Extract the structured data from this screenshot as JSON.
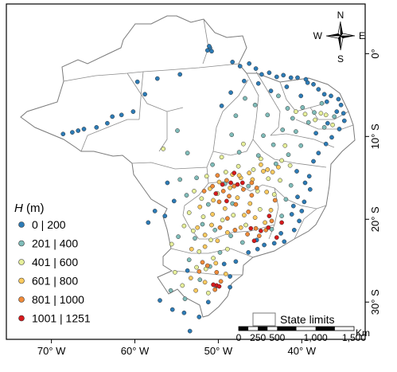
{
  "axes": {
    "x_ticks": [
      {
        "lon": -70,
        "label": "70° W"
      },
      {
        "lon": -60,
        "label": "60° W"
      },
      {
        "lon": -50,
        "label": "50° W"
      },
      {
        "lon": -40,
        "label": "40° W"
      }
    ],
    "y_ticks": [
      {
        "lat": 0,
        "label": "0°"
      },
      {
        "lat": -10,
        "label": "10° S"
      },
      {
        "lat": -20,
        "label": "20° S"
      },
      {
        "lat": -30,
        "label": "30° S"
      }
    ],
    "lon_range": [
      -75.4,
      -32.4
    ],
    "lat_range": [
      -34.5,
      6.0
    ]
  },
  "compass": {
    "n": "N",
    "s": "S",
    "e": "E",
    "w": "W"
  },
  "legend": {
    "title_var": "H",
    "title_unit": " (m)",
    "classes": [
      {
        "label": "0 |  200",
        "color": "#2c7bb6"
      },
      {
        "label": "201 |  400",
        "color": "#7fbcb9"
      },
      {
        "label": "401 |  600",
        "color": "#e6ef9a"
      },
      {
        "label": "601 |  800",
        "color": "#fdca5e"
      },
      {
        "label": "801 | 1000",
        "color": "#f08a38"
      },
      {
        "label": "1001 | 1251",
        "color": "#d7191c"
      }
    ]
  },
  "state_limits": {
    "label": "State limits"
  },
  "scale_bar": {
    "unit": "Km",
    "labels": [
      "0",
      "250",
      "500",
      "1,000",
      "1,500"
    ],
    "km_values": [
      0,
      250,
      500,
      1000,
      1500
    ]
  },
  "stations": [
    {
      "lon": -51.3,
      "lat": 0.4,
      "c": 0
    },
    {
      "lon": -51.0,
      "lat": 0.7,
      "c": 0
    },
    {
      "lon": -50.8,
      "lat": 0.3,
      "c": 0
    },
    {
      "lon": -51.1,
      "lat": 0.9,
      "c": 0
    },
    {
      "lon": -57.3,
      "lat": -3.0,
      "c": 0
    },
    {
      "lon": -59.7,
      "lat": -3.4,
      "c": 0
    },
    {
      "lon": -54.6,
      "lat": -2.5,
      "c": 0
    },
    {
      "lon": -60.2,
      "lat": -7.0,
      "c": 0
    },
    {
      "lon": -61.6,
      "lat": -7.4,
      "c": 0
    },
    {
      "lon": -62.7,
      "lat": -7.6,
      "c": 0
    },
    {
      "lon": -63.3,
      "lat": -8.4,
      "c": 0
    },
    {
      "lon": -64.6,
      "lat": -8.9,
      "c": 0
    },
    {
      "lon": -66.8,
      "lat": -9.3,
      "c": 0
    },
    {
      "lon": -67.5,
      "lat": -9.5,
      "c": 0
    },
    {
      "lon": -68.6,
      "lat": -9.7,
      "c": 0
    },
    {
      "lon": -66.1,
      "lat": -9.1,
      "c": 0
    },
    {
      "lon": -58.8,
      "lat": -4.9,
      "c": 0
    },
    {
      "lon": -48.3,
      "lat": -1.0,
      "c": 0
    },
    {
      "lon": -47.4,
      "lat": -1.5,
      "c": 0
    },
    {
      "lon": -46.3,
      "lat": -1.2,
      "c": 0
    },
    {
      "lon": -45.5,
      "lat": -1.8,
      "c": 0
    },
    {
      "lon": -44.8,
      "lat": -2.5,
      "c": 0
    },
    {
      "lon": -43.9,
      "lat": -2.3,
      "c": 0
    },
    {
      "lon": -43.0,
      "lat": -2.8,
      "c": 0
    },
    {
      "lon": -42.2,
      "lat": -2.6,
      "c": 0
    },
    {
      "lon": -41.3,
      "lat": -2.9,
      "c": 0
    },
    {
      "lon": -40.5,
      "lat": -2.9,
      "c": 0
    },
    {
      "lon": -39.5,
      "lat": -3.1,
      "c": 0
    },
    {
      "lon": -38.6,
      "lat": -3.7,
      "c": 0
    },
    {
      "lon": -38.0,
      "lat": -4.3,
      "c": 0
    },
    {
      "lon": -37.3,
      "lat": -4.9,
      "c": 0
    },
    {
      "lon": -36.5,
      "lat": -5.1,
      "c": 0
    },
    {
      "lon": -35.6,
      "lat": -5.5,
      "c": 0
    },
    {
      "lon": -35.3,
      "lat": -6.2,
      "c": 0
    },
    {
      "lon": -35.0,
      "lat": -7.2,
      "c": 0
    },
    {
      "lon": -34.9,
      "lat": -8.1,
      "c": 0
    },
    {
      "lon": -35.5,
      "lat": -9.1,
      "c": 0
    },
    {
      "lon": -36.4,
      "lat": -10.1,
      "c": 0
    },
    {
      "lon": -37.1,
      "lat": -10.9,
      "c": 0
    },
    {
      "lon": -38.0,
      "lat": -12.0,
      "c": 0
    },
    {
      "lon": -38.6,
      "lat": -13.0,
      "c": 0
    },
    {
      "lon": -39.1,
      "lat": -14.8,
      "c": 0
    },
    {
      "lon": -39.0,
      "lat": -16.4,
      "c": 0
    },
    {
      "lon": -39.7,
      "lat": -17.9,
      "c": 0
    },
    {
      "lon": -40.0,
      "lat": -19.0,
      "c": 0
    },
    {
      "lon": -40.3,
      "lat": -20.2,
      "c": 0
    },
    {
      "lon": -40.9,
      "lat": -21.3,
      "c": 0
    },
    {
      "lon": -42.1,
      "lat": -22.7,
      "c": 0
    },
    {
      "lon": -43.3,
      "lat": -22.9,
      "c": 0
    },
    {
      "lon": -44.5,
      "lat": -23.1,
      "c": 0
    },
    {
      "lon": -45.3,
      "lat": -23.6,
      "c": 0
    },
    {
      "lon": -46.4,
      "lat": -24.0,
      "c": 0
    },
    {
      "lon": -47.9,
      "lat": -25.1,
      "c": 0
    },
    {
      "lon": -48.6,
      "lat": -26.9,
      "c": 0
    },
    {
      "lon": -48.6,
      "lat": -28.2,
      "c": 0
    },
    {
      "lon": -51.2,
      "lat": -30.0,
      "c": 0
    },
    {
      "lon": -52.3,
      "lat": -31.8,
      "c": 0
    },
    {
      "lon": -53.4,
      "lat": -33.5,
      "c": 0
    },
    {
      "lon": -55.5,
      "lat": -30.9,
      "c": 0
    },
    {
      "lon": -57.0,
      "lat": -29.8,
      "c": 0
    },
    {
      "lon": -54.1,
      "lat": -31.3,
      "c": 0
    },
    {
      "lon": -57.6,
      "lat": -19.0,
      "c": 0
    },
    {
      "lon": -56.4,
      "lat": -19.6,
      "c": 0
    },
    {
      "lon": -58.4,
      "lat": -20.4,
      "c": 0
    },
    {
      "lon": -55.3,
      "lat": -17.8,
      "c": 0
    },
    {
      "lon": -56.1,
      "lat": -15.6,
      "c": 0
    },
    {
      "lon": -39.3,
      "lat": -3.5,
      "c": 0
    },
    {
      "lon": -37.0,
      "lat": -5.8,
      "c": 0
    },
    {
      "lon": -35.8,
      "lat": -7.0,
      "c": 0
    },
    {
      "lon": -36.9,
      "lat": -8.4,
      "c": 0
    },
    {
      "lon": -38.3,
      "lat": -9.6,
      "c": 0
    },
    {
      "lon": -40.1,
      "lat": -5.1,
      "c": 0
    },
    {
      "lon": -41.8,
      "lat": -4.0,
      "c": 0
    },
    {
      "lon": -43.7,
      "lat": -4.5,
      "c": 0
    },
    {
      "lon": -45.2,
      "lat": -3.6,
      "c": 0
    },
    {
      "lon": -46.9,
      "lat": -3.3,
      "c": 0
    },
    {
      "lon": -48.5,
      "lat": -4.7,
      "c": 0
    },
    {
      "lon": -49.6,
      "lat": -6.3,
      "c": 0
    },
    {
      "lon": -40.6,
      "lat": -14.2,
      "c": 0
    },
    {
      "lon": -39.6,
      "lat": -15.6,
      "c": 0
    },
    {
      "lon": -40.5,
      "lat": -17.3,
      "c": 0
    },
    {
      "lon": -41.2,
      "lat": -19.4,
      "c": 0
    },
    {
      "lon": -41.0,
      "lat": -18.4,
      "c": 0
    },
    {
      "lon": -42.5,
      "lat": -21.7,
      "c": 0
    },
    {
      "lon": -45.4,
      "lat": -22.5,
      "c": 0
    },
    {
      "lon": -49.3,
      "lat": -25.4,
      "c": 0
    },
    {
      "lon": -53.7,
      "lat": -26.2,
      "c": 0
    },
    {
      "lon": -42.8,
      "lat": -5.1,
      "c": 1
    },
    {
      "lon": -41.7,
      "lat": -6.6,
      "c": 1
    },
    {
      "lon": -39.9,
      "lat": -6.5,
      "c": 1
    },
    {
      "lon": -38.5,
      "lat": -7.1,
      "c": 1
    },
    {
      "lon": -37.6,
      "lat": -6.0,
      "c": 1
    },
    {
      "lon": -36.1,
      "lat": -7.6,
      "c": 1
    },
    {
      "lon": -37.3,
      "lat": -8.9,
      "c": 1
    },
    {
      "lon": -39.2,
      "lat": -8.3,
      "c": 1
    },
    {
      "lon": -40.7,
      "lat": -9.4,
      "c": 1
    },
    {
      "lon": -42.3,
      "lat": -9.2,
      "c": 1
    },
    {
      "lon": -44.1,
      "lat": -7.4,
      "c": 1
    },
    {
      "lon": -45.6,
      "lat": -6.2,
      "c": 1
    },
    {
      "lon": -46.8,
      "lat": -5.4,
      "c": 1
    },
    {
      "lon": -47.9,
      "lat": -7.5,
      "c": 1
    },
    {
      "lon": -48.4,
      "lat": -9.8,
      "c": 1
    },
    {
      "lon": -47.5,
      "lat": -11.9,
      "c": 1
    },
    {
      "lon": -45.2,
      "lat": -12.3,
      "c": 1
    },
    {
      "lon": -43.4,
      "lat": -11.0,
      "c": 1
    },
    {
      "lon": -41.6,
      "lat": -12.2,
      "c": 1
    },
    {
      "lon": -40.1,
      "lat": -11.1,
      "c": 1
    },
    {
      "lon": -41.3,
      "lat": -15.9,
      "c": 1
    },
    {
      "lon": -41.9,
      "lat": -17.6,
      "c": 1
    },
    {
      "lon": -42.4,
      "lat": -19.6,
      "c": 1
    },
    {
      "lon": -43.6,
      "lat": -21.2,
      "c": 1
    },
    {
      "lon": -47.1,
      "lat": -22.8,
      "c": 1
    },
    {
      "lon": -48.5,
      "lat": -22.0,
      "c": 1
    },
    {
      "lon": -50.4,
      "lat": -21.3,
      "c": 1
    },
    {
      "lon": -51.9,
      "lat": -20.6,
      "c": 1
    },
    {
      "lon": -52.8,
      "lat": -22.3,
      "c": 1
    },
    {
      "lon": -54.8,
      "lat": -22.1,
      "c": 1
    },
    {
      "lon": -53.5,
      "lat": -24.9,
      "c": 1
    },
    {
      "lon": -52.2,
      "lat": -27.3,
      "c": 1
    },
    {
      "lon": -50.3,
      "lat": -28.1,
      "c": 1
    },
    {
      "lon": -55.7,
      "lat": -28.6,
      "c": 1
    },
    {
      "lon": -54.0,
      "lat": -29.6,
      "c": 1
    },
    {
      "lon": -49.2,
      "lat": -15.7,
      "c": 1
    },
    {
      "lon": -50.7,
      "lat": -13.4,
      "c": 1
    },
    {
      "lon": -52.6,
      "lat": -15.0,
      "c": 1
    },
    {
      "lon": -53.8,
      "lat": -17.1,
      "c": 1
    },
    {
      "lon": -54.6,
      "lat": -15.2,
      "c": 1
    },
    {
      "lon": -41.1,
      "lat": -7.8,
      "c": 1
    },
    {
      "lon": -44.6,
      "lat": -9.9,
      "c": 1
    },
    {
      "lon": -43.1,
      "lat": -13.3,
      "c": 1
    },
    {
      "lon": -46.4,
      "lat": -16.0,
      "c": 1
    },
    {
      "lon": -48.3,
      "lat": -18.1,
      "c": 1
    },
    {
      "lon": -51.2,
      "lat": -18.2,
      "c": 1
    },
    {
      "lon": -49.8,
      "lat": -24.0,
      "c": 1
    },
    {
      "lon": -51.0,
      "lat": -25.7,
      "c": 1
    },
    {
      "lon": -54.9,
      "lat": -9.3,
      "c": 1
    },
    {
      "lon": -53.7,
      "lat": -12.0,
      "c": 1
    },
    {
      "lon": -40.7,
      "lat": -7.0,
      "c": 2
    },
    {
      "lon": -39.6,
      "lat": -7.3,
      "c": 2
    },
    {
      "lon": -38.4,
      "lat": -8.0,
      "c": 2
    },
    {
      "lon": -37.7,
      "lat": -7.2,
      "c": 2
    },
    {
      "lon": -36.3,
      "lat": -8.6,
      "c": 2
    },
    {
      "lon": -42.0,
      "lat": -11.1,
      "c": 2
    },
    {
      "lon": -41.4,
      "lat": -13.5,
      "c": 2
    },
    {
      "lon": -44.0,
      "lat": -15.1,
      "c": 2
    },
    {
      "lon": -45.8,
      "lat": -14.0,
      "c": 2
    },
    {
      "lon": -47.6,
      "lat": -13.6,
      "c": 2
    },
    {
      "lon": -49.6,
      "lat": -12.5,
      "c": 2
    },
    {
      "lon": -51.4,
      "lat": -14.8,
      "c": 2
    },
    {
      "lon": -52.9,
      "lat": -16.6,
      "c": 2
    },
    {
      "lon": -53.5,
      "lat": -19.2,
      "c": 2
    },
    {
      "lon": -54.1,
      "lat": -20.8,
      "c": 2
    },
    {
      "lon": -52.3,
      "lat": -23.9,
      "c": 2
    },
    {
      "lon": -50.6,
      "lat": -24.7,
      "c": 2
    },
    {
      "lon": -51.5,
      "lat": -26.0,
      "c": 2
    },
    {
      "lon": -52.6,
      "lat": -25.8,
      "c": 2
    },
    {
      "lon": -55.6,
      "lat": -23.0,
      "c": 2
    },
    {
      "lon": -49.5,
      "lat": -20.1,
      "c": 2
    },
    {
      "lon": -48.2,
      "lat": -19.5,
      "c": 2
    },
    {
      "lon": -46.7,
      "lat": -20.7,
      "c": 2
    },
    {
      "lon": -45.0,
      "lat": -18.8,
      "c": 2
    },
    {
      "lon": -43.3,
      "lat": -17.0,
      "c": 2
    },
    {
      "lon": -42.6,
      "lat": -15.3,
      "c": 2
    },
    {
      "lon": -44.9,
      "lat": -12.7,
      "c": 2
    },
    {
      "lon": -47.0,
      "lat": -10.9,
      "c": 2
    },
    {
      "lon": -50.1,
      "lat": -16.9,
      "c": 2
    },
    {
      "lon": -51.8,
      "lat": -19.7,
      "c": 2
    },
    {
      "lon": -53.0,
      "lat": -21.4,
      "c": 2
    },
    {
      "lon": -50.9,
      "lat": -22.5,
      "c": 2
    },
    {
      "lon": -48.9,
      "lat": -23.6,
      "c": 2
    },
    {
      "lon": -55.2,
      "lat": -26.4,
      "c": 2
    },
    {
      "lon": -54.3,
      "lat": -28.0,
      "c": 2
    },
    {
      "lon": -56.6,
      "lat": -11.5,
      "c": 2
    },
    {
      "lon": -37.1,
      "lat": -7.4,
      "c": 2
    },
    {
      "lon": -42.4,
      "lat": -12.9,
      "c": 2
    },
    {
      "lon": -45.3,
      "lat": -16.6,
      "c": 2
    },
    {
      "lon": -49.1,
      "lat": -14.3,
      "c": 2
    },
    {
      "lon": -52.0,
      "lat": -17.5,
      "c": 2
    },
    {
      "lon": -51.2,
      "lat": -28.9,
      "c": 2
    },
    {
      "lon": -44.6,
      "lat": -14.2,
      "c": 3
    },
    {
      "lon": -45.9,
      "lat": -15.2,
      "c": 3
    },
    {
      "lon": -47.3,
      "lat": -15.0,
      "c": 3
    },
    {
      "lon": -48.6,
      "lat": -16.2,
      "c": 3
    },
    {
      "lon": -49.9,
      "lat": -15.5,
      "c": 3
    },
    {
      "lon": -51.0,
      "lat": -16.3,
      "c": 3
    },
    {
      "lon": -52.2,
      "lat": -18.5,
      "c": 3
    },
    {
      "lon": -50.7,
      "lat": -19.4,
      "c": 3
    },
    {
      "lon": -49.2,
      "lat": -18.7,
      "c": 3
    },
    {
      "lon": -47.7,
      "lat": -17.4,
      "c": 3
    },
    {
      "lon": -46.2,
      "lat": -18.1,
      "c": 3
    },
    {
      "lon": -44.2,
      "lat": -16.7,
      "c": 3
    },
    {
      "lon": -43.7,
      "lat": -18.9,
      "c": 3
    },
    {
      "lon": -45.6,
      "lat": -19.8,
      "c": 3
    },
    {
      "lon": -47.3,
      "lat": -21.0,
      "c": 3
    },
    {
      "lon": -48.9,
      "lat": -21.6,
      "c": 3
    },
    {
      "lon": -50.1,
      "lat": -22.6,
      "c": 3
    },
    {
      "lon": -51.6,
      "lat": -23.3,
      "c": 3
    },
    {
      "lon": -53.2,
      "lat": -23.6,
      "c": 3
    },
    {
      "lon": -50.3,
      "lat": -25.3,
      "c": 3
    },
    {
      "lon": -49.1,
      "lat": -26.6,
      "c": 3
    },
    {
      "lon": -51.6,
      "lat": -27.6,
      "c": 3
    },
    {
      "lon": -53.3,
      "lat": -27.1,
      "c": 3
    },
    {
      "lon": -52.7,
      "lat": -28.6,
      "c": 3
    },
    {
      "lon": -42.8,
      "lat": -13.7,
      "c": 3
    },
    {
      "lon": -44.9,
      "lat": -13.4,
      "c": 3
    },
    {
      "lon": -48.3,
      "lat": -14.6,
      "c": 3
    },
    {
      "lon": -52.5,
      "lat": -21.0,
      "c": 3
    },
    {
      "lon": -50.6,
      "lat": -17.7,
      "c": 3
    },
    {
      "lon": -46.9,
      "lat": -19.5,
      "c": 3
    },
    {
      "lon": -44.4,
      "lat": -20.4,
      "c": 3
    },
    {
      "lon": -43.5,
      "lat": -14.3,
      "c": 3
    },
    {
      "lon": -44.1,
      "lat": -14.0,
      "c": 3
    },
    {
      "lon": -46.3,
      "lat": -14.4,
      "c": 3
    },
    {
      "lon": -47.5,
      "lat": -14.7,
      "c": 3
    },
    {
      "lon": -50.8,
      "lat": -20.7,
      "c": 3
    },
    {
      "lon": -51.6,
      "lat": -21.9,
      "c": 3
    },
    {
      "lon": -49.4,
      "lat": -16.6,
      "c": 4
    },
    {
      "lon": -48.1,
      "lat": -16.0,
      "c": 4
    },
    {
      "lon": -47.0,
      "lat": -16.4,
      "c": 4
    },
    {
      "lon": -46.0,
      "lat": -17.1,
      "c": 4
    },
    {
      "lon": -49.9,
      "lat": -17.9,
      "c": 4
    },
    {
      "lon": -48.7,
      "lat": -17.2,
      "c": 4
    },
    {
      "lon": -47.9,
      "lat": -18.2,
      "c": 4
    },
    {
      "lon": -46.5,
      "lat": -21.8,
      "c": 4
    },
    {
      "lon": -45.5,
      "lat": -21.1,
      "c": 4
    },
    {
      "lon": -44.3,
      "lat": -21.3,
      "c": 4
    },
    {
      "lon": -43.6,
      "lat": -20.2,
      "c": 4
    },
    {
      "lon": -48.9,
      "lat": -19.9,
      "c": 4
    },
    {
      "lon": -49.8,
      "lat": -21.0,
      "c": 4
    },
    {
      "lon": -51.9,
      "lat": -25.2,
      "c": 4
    },
    {
      "lon": -50.2,
      "lat": -26.4,
      "c": 4
    },
    {
      "lon": -49.7,
      "lat": -27.5,
      "c": 4
    },
    {
      "lon": -50.4,
      "lat": -28.5,
      "c": 4
    },
    {
      "lon": -45.1,
      "lat": -22.0,
      "c": 4
    },
    {
      "lon": -50.7,
      "lat": -16.0,
      "c": 4
    },
    {
      "lon": -48.0,
      "lat": -21.3,
      "c": 4
    },
    {
      "lon": -51.3,
      "lat": -25.6,
      "c": 4
    },
    {
      "lon": -49.0,
      "lat": -15.3,
      "c": 4
    },
    {
      "lon": -50.1,
      "lat": -14.7,
      "c": 4
    },
    {
      "lon": -45.4,
      "lat": -16.2,
      "c": 4
    },
    {
      "lon": -51.7,
      "lat": -16.6,
      "c": 4
    },
    {
      "lon": -46.4,
      "lat": -19.1,
      "c": 4
    },
    {
      "lon": -43.2,
      "lat": -17.7,
      "c": 4
    },
    {
      "lon": -46.0,
      "lat": -15.6,
      "c": 4
    },
    {
      "lon": -52.3,
      "lat": -26.3,
      "c": 4
    },
    {
      "lon": -49.5,
      "lat": -15.8,
      "c": 5
    },
    {
      "lon": -48.5,
      "lat": -15.6,
      "c": 5
    },
    {
      "lon": -47.7,
      "lat": -15.8,
      "c": 5
    },
    {
      "lon": -49.0,
      "lat": -17.8,
      "c": 5
    },
    {
      "lon": -46.1,
      "lat": -21.1,
      "c": 5
    },
    {
      "lon": -44.9,
      "lat": -21.4,
      "c": 5
    },
    {
      "lon": -44.0,
      "lat": -21.0,
      "c": 5
    },
    {
      "lon": -43.0,
      "lat": -22.2,
      "c": 5
    },
    {
      "lon": -42.4,
      "lat": -20.4,
      "c": 5
    },
    {
      "lon": -45.7,
      "lat": -22.6,
      "c": 5
    },
    {
      "lon": -50.2,
      "lat": -28.0,
      "c": 5
    },
    {
      "lon": -49.9,
      "lat": -28.1,
      "c": 5
    },
    {
      "lon": -50.3,
      "lat": -16.9,
      "c": 5
    },
    {
      "lon": -43.9,
      "lat": -19.6,
      "c": 5
    },
    {
      "lon": -48.1,
      "lat": -14.4,
      "c": 5
    },
    {
      "lon": -50.6,
      "lat": -27.9,
      "c": 5
    },
    {
      "lon": -47.1,
      "lat": -15.6,
      "c": 5
    }
  ]
}
